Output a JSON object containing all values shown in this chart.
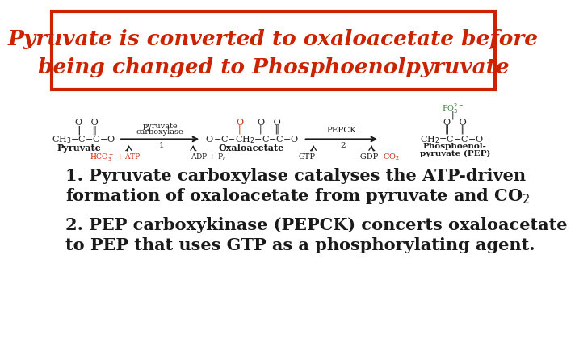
{
  "bg_color": "#ffffff",
  "title_line1": "Pyruvate is converted to oxaloacetate before",
  "title_line2": "being changed to Phosphoenolpyruvate",
  "title_color": "#cc2200",
  "title_box_color": "#cc2200",
  "title_fontsize": 19,
  "body_text1_line1": "1. Pyruvate carboxylase catalyses the ATP-driven",
  "body_text1_line2": "formation of oxaloacetate from pyruvate and CO",
  "body_text2_line1": "2. PEP carboxykinase (PEPCK) concerts oxaloacetate",
  "body_text2_line2": "to PEP that uses GTP as a phosphorylating agent.",
  "body_fontsize": 15,
  "black": "#1a1a1a",
  "red": "#cc2200",
  "green": "#2e7d32"
}
